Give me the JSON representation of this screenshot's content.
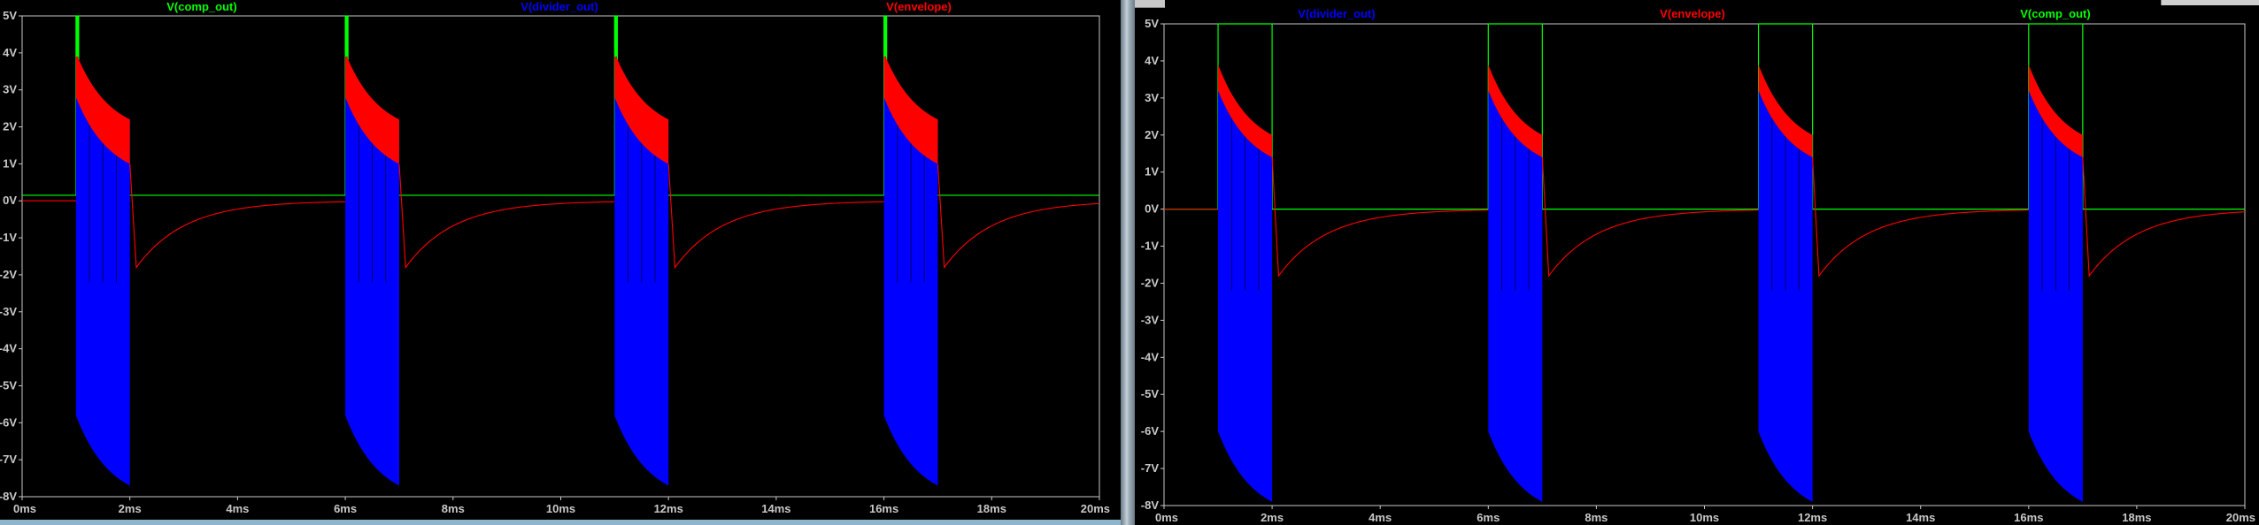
{
  "colors": {
    "plot_bg": "#000000",
    "axis": "#c8c8c8",
    "tick_text": "#c8c8c8",
    "comp_out": "#00ff00",
    "divider_out": "#0000ff",
    "envelope": "#ff0000"
  },
  "chart_data": [
    {
      "type": "line",
      "x_unit": "ms",
      "y_unit": "V",
      "xlim": [
        0,
        20
      ],
      "ylim": [
        -8,
        5
      ],
      "x_ticks": [
        "0ms",
        "2ms",
        "4ms",
        "6ms",
        "8ms",
        "10ms",
        "12ms",
        "14ms",
        "16ms",
        "18ms",
        "20ms"
      ],
      "y_ticks": [
        "5V",
        "4V",
        "3V",
        "2V",
        "1V",
        "0V",
        "-1V",
        "-2V",
        "-3V",
        "-4V",
        "-5V",
        "-6V",
        "-7V",
        "-8V"
      ],
      "grid": false,
      "legend": "top",
      "burst_period_ms": 5,
      "burst_starts_ms": [
        1,
        6,
        11,
        16
      ],
      "burst_ends_ms": [
        2,
        7,
        12,
        17
      ],
      "series": [
        {
          "name": "V(comp_out)",
          "color": "#00ff00",
          "high_v": 5.0,
          "low_v": 0.15,
          "pulse_width_ms": 0.05
        },
        {
          "name": "V(divider_out)",
          "color": "#0000ff",
          "upper_start_v": 3.9,
          "upper_end_v": 2.2,
          "lower_start_v": -5.8,
          "lower_end_v": -7.7
        },
        {
          "name": "V(envelope)",
          "color": "#ff0000",
          "upper_start_v": 4.0,
          "upper_end_v": 2.2,
          "lower_start_v": 2.8,
          "lower_end_v": 1.0,
          "undershoot_v": -1.8,
          "rest_v": 0.0
        }
      ]
    },
    {
      "type": "line",
      "x_unit": "ms",
      "y_unit": "V",
      "xlim": [
        0,
        20
      ],
      "ylim": [
        -8,
        5
      ],
      "x_ticks": [
        "0ms",
        "2ms",
        "4ms",
        "6ms",
        "8ms",
        "10ms",
        "12ms",
        "14ms",
        "16ms",
        "18ms",
        "20ms"
      ],
      "y_ticks": [
        "5V",
        "4V",
        "3V",
        "2V",
        "1V",
        "0V",
        "-1V",
        "-2V",
        "-3V",
        "-4V",
        "-5V",
        "-6V",
        "-7V",
        "-8V"
      ],
      "grid": false,
      "legend": "top",
      "burst_period_ms": 5,
      "burst_starts_ms": [
        1,
        6,
        11,
        16
      ],
      "burst_ends_ms": [
        2,
        7,
        12,
        17
      ],
      "series": [
        {
          "name": "V(divider_out)",
          "color": "#0000ff",
          "upper_start_v": 3.2,
          "upper_end_v": 1.4,
          "lower_start_v": -6.0,
          "lower_end_v": -7.9
        },
        {
          "name": "V(envelope)",
          "color": "#ff0000",
          "upper_start_v": 3.9,
          "upper_end_v": 2.0,
          "lower_start_v": 3.2,
          "lower_end_v": 1.4,
          "undershoot_v": -1.8,
          "rest_v": 0.0
        },
        {
          "name": "V(comp_out)",
          "color": "#00ff00",
          "high_v": 5.0,
          "low_v": 0.0,
          "pulse_width_ms": 1.0
        }
      ]
    }
  ]
}
